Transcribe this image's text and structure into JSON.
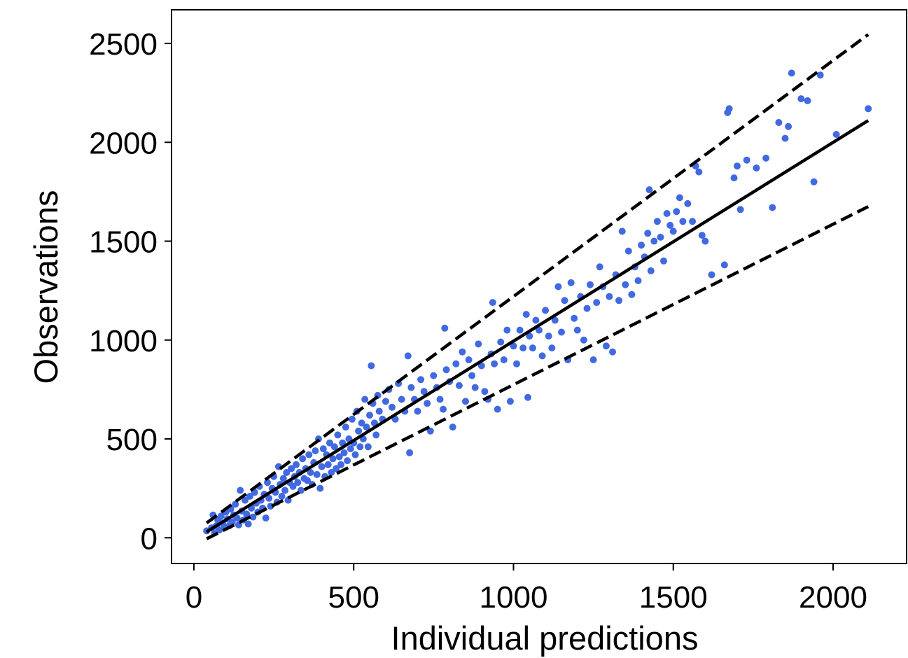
{
  "chart_data": {
    "type": "scatter",
    "title": "",
    "xlabel": "Individual predictions",
    "ylabel": "Observations",
    "xlim": [
      -70,
      2230
    ],
    "ylim": [
      -130,
      2670
    ],
    "xticks": [
      0,
      500,
      1000,
      1500,
      2000
    ],
    "yticks": [
      0,
      500,
      1000,
      1500,
      2000,
      2500
    ],
    "grid": false,
    "legend": "none",
    "point_color": "#4169e1",
    "line_color": "#000000",
    "lines": [
      {
        "style": "solid",
        "x": [
          40,
          2110
        ],
        "y": [
          30,
          2110
        ]
      },
      {
        "style": "dashed",
        "x": [
          40,
          2110
        ],
        "y": [
          75,
          2545
        ]
      },
      {
        "style": "dashed",
        "x": [
          40,
          2110
        ],
        "y": [
          -5,
          1675
        ]
      }
    ],
    "points": [
      [
        40,
        35
      ],
      [
        55,
        50
      ],
      [
        60,
        115
      ],
      [
        65,
        25
      ],
      [
        70,
        60
      ],
      [
        75,
        90
      ],
      [
        80,
        40
      ],
      [
        85,
        110
      ],
      [
        90,
        75
      ],
      [
        95,
        55
      ],
      [
        100,
        130
      ],
      [
        105,
        95
      ],
      [
        110,
        60
      ],
      [
        115,
        145
      ],
      [
        120,
        80
      ],
      [
        125,
        115
      ],
      [
        130,
        170
      ],
      [
        135,
        100
      ],
      [
        140,
        65
      ],
      [
        145,
        240
      ],
      [
        150,
        135
      ],
      [
        155,
        90
      ],
      [
        160,
        190
      ],
      [
        165,
        120
      ],
      [
        170,
        70
      ],
      [
        175,
        210
      ],
      [
        180,
        150
      ],
      [
        185,
        105
      ],
      [
        190,
        230
      ],
      [
        195,
        175
      ],
      [
        200,
        130
      ],
      [
        205,
        260
      ],
      [
        210,
        190
      ],
      [
        215,
        150
      ],
      [
        220,
        220
      ],
      [
        225,
        100
      ],
      [
        230,
        280
      ],
      [
        235,
        200
      ],
      [
        240,
        160
      ],
      [
        245,
        250
      ],
      [
        250,
        310
      ],
      [
        255,
        230
      ],
      [
        260,
        180
      ],
      [
        265,
        360
      ],
      [
        270,
        270
      ],
      [
        275,
        210
      ],
      [
        280,
        300
      ],
      [
        285,
        240
      ],
      [
        290,
        330
      ],
      [
        295,
        190
      ],
      [
        300,
        280
      ],
      [
        305,
        350
      ],
      [
        310,
        260
      ],
      [
        315,
        310
      ],
      [
        320,
        370
      ],
      [
        325,
        280
      ],
      [
        330,
        330
      ],
      [
        335,
        240
      ],
      [
        340,
        400
      ],
      [
        345,
        300
      ],
      [
        350,
        350
      ],
      [
        355,
        290
      ],
      [
        360,
        420
      ],
      [
        365,
        330
      ],
      [
        370,
        270
      ],
      [
        375,
        380
      ],
      [
        380,
        440
      ],
      [
        385,
        320
      ],
      [
        390,
        500
      ],
      [
        395,
        250
      ],
      [
        400,
        360
      ],
      [
        405,
        450
      ],
      [
        410,
        310
      ],
      [
        415,
        420
      ],
      [
        420,
        370
      ],
      [
        425,
        480
      ],
      [
        430,
        330
      ],
      [
        435,
        400
      ],
      [
        440,
        460
      ],
      [
        445,
        350
      ],
      [
        450,
        520
      ],
      [
        455,
        410
      ],
      [
        460,
        370
      ],
      [
        465,
        480
      ],
      [
        470,
        430
      ],
      [
        475,
        560
      ],
      [
        480,
        390
      ],
      [
        485,
        500
      ],
      [
        490,
        450
      ],
      [
        495,
        600
      ],
      [
        500,
        480
      ],
      [
        505,
        420
      ],
      [
        510,
        640
      ],
      [
        515,
        540
      ],
      [
        520,
        460
      ],
      [
        525,
        580
      ],
      [
        530,
        500
      ],
      [
        535,
        700
      ],
      [
        540,
        560
      ],
      [
        545,
        460
      ],
      [
        550,
        620
      ],
      [
        555,
        870
      ],
      [
        560,
        680
      ],
      [
        565,
        580
      ],
      [
        570,
        520
      ],
      [
        575,
        720
      ],
      [
        580,
        640
      ],
      [
        590,
        600
      ],
      [
        600,
        690
      ],
      [
        610,
        750
      ],
      [
        620,
        660
      ],
      [
        630,
        600
      ],
      [
        640,
        780
      ],
      [
        650,
        700
      ],
      [
        660,
        640
      ],
      [
        670,
        920
      ],
      [
        675,
        430
      ],
      [
        680,
        760
      ],
      [
        690,
        700
      ],
      [
        700,
        640
      ],
      [
        710,
        800
      ],
      [
        720,
        740
      ],
      [
        730,
        680
      ],
      [
        740,
        540
      ],
      [
        750,
        820
      ],
      [
        760,
        760
      ],
      [
        770,
        700
      ],
      [
        780,
        650
      ],
      [
        785,
        1060
      ],
      [
        790,
        850
      ],
      [
        800,
        790
      ],
      [
        810,
        560
      ],
      [
        820,
        880
      ],
      [
        830,
        770
      ],
      [
        840,
        940
      ],
      [
        850,
        690
      ],
      [
        860,
        900
      ],
      [
        870,
        820
      ],
      [
        880,
        760
      ],
      [
        890,
        980
      ],
      [
        900,
        870
      ],
      [
        910,
        740
      ],
      [
        920,
        700
      ],
      [
        930,
        930
      ],
      [
        935,
        1190
      ],
      [
        940,
        880
      ],
      [
        950,
        650
      ],
      [
        960,
        990
      ],
      [
        970,
        900
      ],
      [
        980,
        1050
      ],
      [
        990,
        690
      ],
      [
        1000,
        970
      ],
      [
        1010,
        880
      ],
      [
        1020,
        1050
      ],
      [
        1030,
        960
      ],
      [
        1040,
        1130
      ],
      [
        1045,
        710
      ],
      [
        1050,
        1020
      ],
      [
        1060,
        960
      ],
      [
        1070,
        1100
      ],
      [
        1080,
        1050
      ],
      [
        1090,
        920
      ],
      [
        1100,
        1150
      ],
      [
        1110,
        1020
      ],
      [
        1120,
        960
      ],
      [
        1130,
        1100
      ],
      [
        1140,
        1270
      ],
      [
        1150,
        1040
      ],
      [
        1160,
        1200
      ],
      [
        1170,
        900
      ],
      [
        1180,
        1290
      ],
      [
        1190,
        1110
      ],
      [
        1200,
        1050
      ],
      [
        1210,
        1220
      ],
      [
        1220,
        1000
      ],
      [
        1230,
        1160
      ],
      [
        1240,
        1280
      ],
      [
        1250,
        900
      ],
      [
        1260,
        1190
      ],
      [
        1270,
        1370
      ],
      [
        1280,
        1270
      ],
      [
        1290,
        970
      ],
      [
        1300,
        1220
      ],
      [
        1310,
        940
      ],
      [
        1320,
        1330
      ],
      [
        1330,
        1200
      ],
      [
        1340,
        1550
      ],
      [
        1350,
        1280
      ],
      [
        1360,
        1450
      ],
      [
        1370,
        1230
      ],
      [
        1380,
        1370
      ],
      [
        1390,
        1300
      ],
      [
        1400,
        1480
      ],
      [
        1410,
        1420
      ],
      [
        1420,
        1540
      ],
      [
        1425,
        1760
      ],
      [
        1430,
        1350
      ],
      [
        1440,
        1500
      ],
      [
        1450,
        1600
      ],
      [
        1460,
        1520
      ],
      [
        1470,
        1400
      ],
      [
        1480,
        1640
      ],
      [
        1490,
        1580
      ],
      [
        1500,
        1550
      ],
      [
        1510,
        1650
      ],
      [
        1520,
        1720
      ],
      [
        1530,
        1600
      ],
      [
        1545,
        1690
      ],
      [
        1560,
        1600
      ],
      [
        1570,
        1880
      ],
      [
        1580,
        1850
      ],
      [
        1590,
        1530
      ],
      [
        1600,
        1500
      ],
      [
        1620,
        1330
      ],
      [
        1660,
        1380
      ],
      [
        1670,
        2150
      ],
      [
        1675,
        2170
      ],
      [
        1690,
        1820
      ],
      [
        1700,
        1880
      ],
      [
        1710,
        1660
      ],
      [
        1730,
        1910
      ],
      [
        1760,
        1870
      ],
      [
        1790,
        1920
      ],
      [
        1810,
        1670
      ],
      [
        1830,
        2100
      ],
      [
        1850,
        2020
      ],
      [
        1860,
        2080
      ],
      [
        1870,
        2350
      ],
      [
        1900,
        2220
      ],
      [
        1920,
        2210
      ],
      [
        1940,
        1800
      ],
      [
        1960,
        2340
      ],
      [
        2010,
        2040
      ],
      [
        2110,
        2170
      ]
    ]
  }
}
